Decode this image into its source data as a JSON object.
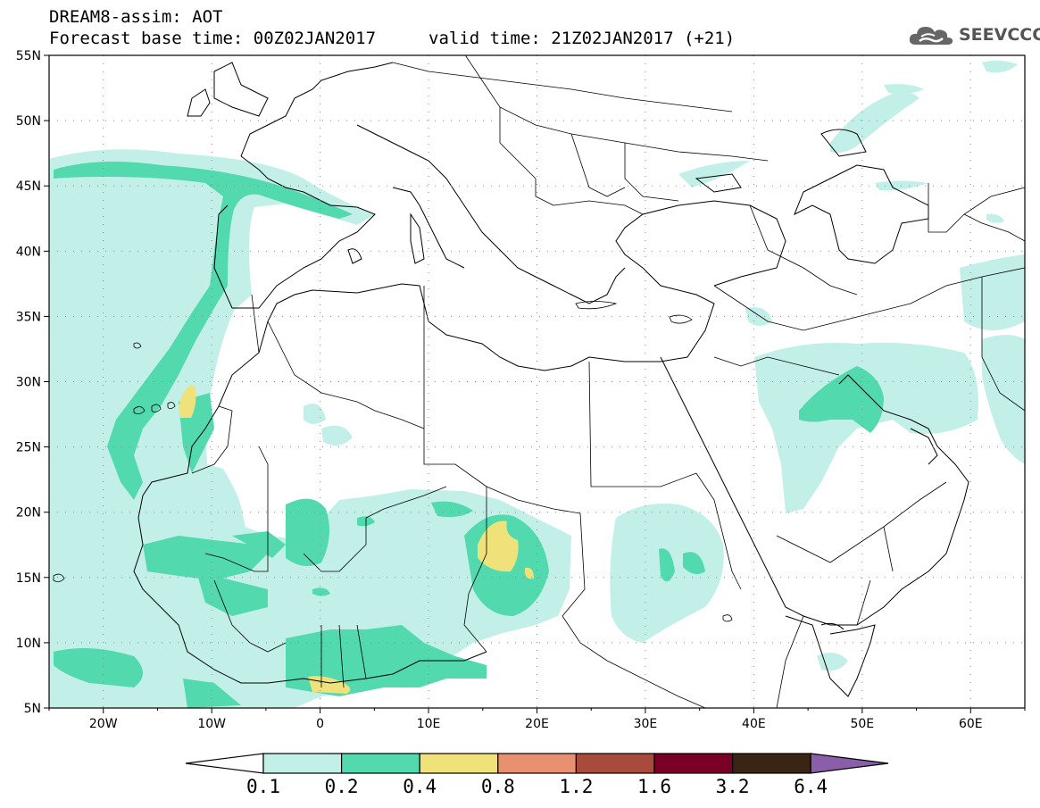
{
  "title": {
    "line1": "DREAM8-assim: AOT",
    "line2": "Forecast base time: 00Z02JAN2017",
    "valid": "valid time: 21Z02JAN2017 (+21)"
  },
  "logo": {
    "text": "SEEVCCC",
    "icon": "cloud-icon"
  },
  "map": {
    "lon_range": [
      -25,
      65
    ],
    "lat_range": [
      5,
      55
    ],
    "lat_ticks": [
      "55N",
      "50N",
      "45N",
      "40N",
      "35N",
      "30N",
      "25N",
      "20N",
      "15N",
      "10N",
      "5N"
    ],
    "lon_ticks": [
      "20W",
      "10W",
      "0",
      "10E",
      "20E",
      "30E",
      "40E",
      "50E",
      "60E"
    ],
    "lat_values": [
      55,
      50,
      45,
      40,
      35,
      30,
      25,
      20,
      15,
      10,
      5
    ],
    "lon_values": [
      -20,
      -10,
      0,
      10,
      20,
      30,
      40,
      50,
      60
    ],
    "gridlines": "dotted"
  },
  "colorbar": {
    "labels": [
      "0.1",
      "0.2",
      "0.4",
      "0.8",
      "1.2",
      "1.6",
      "3.2",
      "6.4"
    ],
    "colors": [
      "#ffffff",
      "#c2f0e8",
      "#52d9ae",
      "#f0e27a",
      "#e89070",
      "#a84a3c",
      "#7a0028",
      "#3a2414",
      "#8a5ea8"
    ]
  },
  "fields": {
    "level_colors": {
      "l1": "#c2f0e8",
      "l2": "#52d9ae",
      "l3": "#f0e27a"
    }
  }
}
